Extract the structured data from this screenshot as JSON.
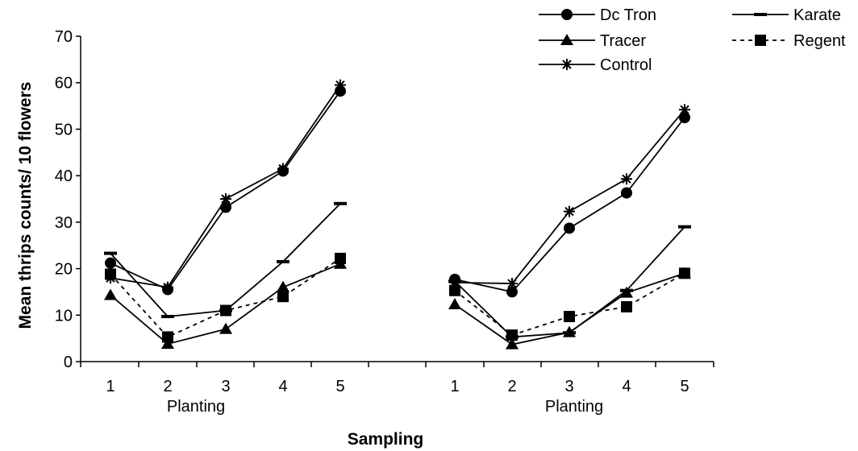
{
  "chart_data": {
    "type": "line",
    "title": "",
    "xlabel": "Sampling",
    "ylabel": "Mean thrips counts/ 10 flowers",
    "ylim": [
      0,
      70
    ],
    "yticks": [
      "0",
      "10",
      "20",
      "30",
      "40",
      "50",
      "60",
      "70"
    ],
    "x": [
      "1",
      "2",
      "3",
      "4",
      "5"
    ],
    "grid": false,
    "legend_position": "top-right",
    "groups": [
      {
        "label": "Planting",
        "series": [
          {
            "name": "Dc Tron",
            "marker": "circle",
            "dash": false,
            "values": [
              21.2,
              15.5,
              33.2,
              41.0,
              58.2
            ]
          },
          {
            "name": "Karate",
            "marker": "dash",
            "dash": false,
            "values": [
              23.3,
              9.7,
              11.0,
              21.5,
              34.0
            ]
          },
          {
            "name": "Tracer",
            "marker": "triangle",
            "dash": false,
            "values": [
              14.3,
              3.8,
              7.0,
              16.0,
              21.0
            ]
          },
          {
            "name": "Regent",
            "marker": "square",
            "dash": true,
            "values": [
              18.8,
              5.3,
              11.0,
              14.0,
              22.2
            ]
          },
          {
            "name": "Control",
            "marker": "star",
            "dash": false,
            "values": [
              18.0,
              16.0,
              35.0,
              41.5,
              59.5
            ]
          }
        ]
      },
      {
        "label": "Planting",
        "series": [
          {
            "name": "Dc Tron",
            "marker": "circle",
            "dash": false,
            "values": [
              17.7,
              15.0,
              28.7,
              36.3,
              52.5
            ]
          },
          {
            "name": "Karate",
            "marker": "dash",
            "dash": false,
            "values": [
              17.3,
              5.3,
              6.2,
              15.3,
              29.0
            ]
          },
          {
            "name": "Tracer",
            "marker": "triangle",
            "dash": false,
            "values": [
              12.3,
              3.7,
              6.3,
              14.8,
              19.0
            ]
          },
          {
            "name": "Regent",
            "marker": "square",
            "dash": true,
            "values": [
              15.3,
              5.7,
              9.7,
              11.8,
              19.0
            ]
          },
          {
            "name": "Control",
            "marker": "star",
            "dash": false,
            "values": [
              17.0,
              16.8,
              32.3,
              39.3,
              54.2
            ]
          }
        ]
      }
    ]
  }
}
